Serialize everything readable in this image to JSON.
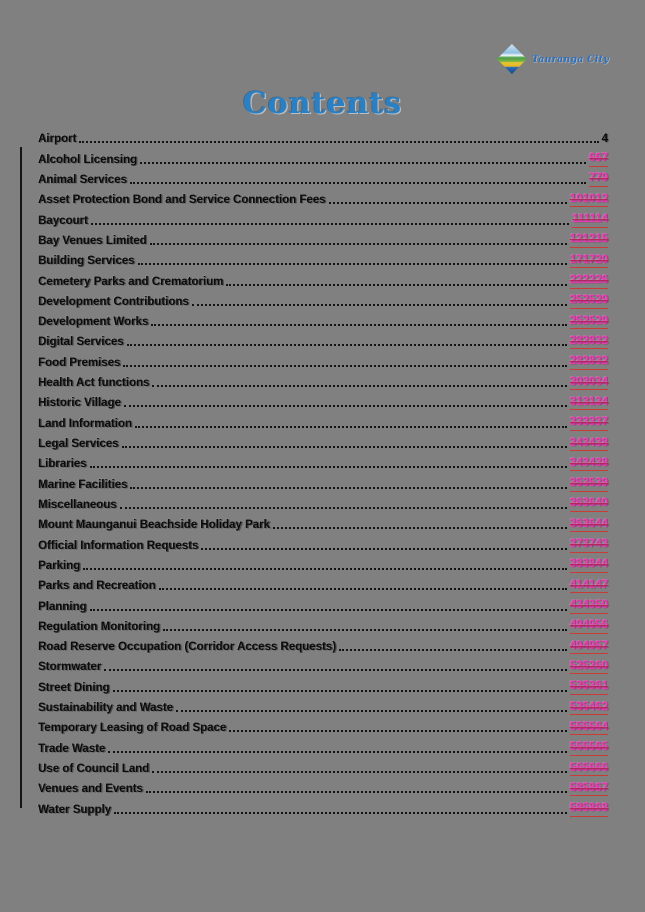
{
  "logo": {
    "brand": "Tauranga City",
    "icon": "tauranga-city-diamond-logo"
  },
  "title": "Contents",
  "colors": {
    "page_background": "#808080",
    "title_blue": "#2a80c4",
    "changed_page_pink": "#e63cb2",
    "strike_underline_red": "#cb3b35",
    "body_text": "#0b0b0b"
  },
  "toc": {
    "entries": [
      {
        "label": "Airport",
        "page": "4",
        "changed": false
      },
      {
        "label": "Alcohol Licensing",
        "page": "667",
        "changed": true
      },
      {
        "label": "Animal Services",
        "page": "779",
        "changed": true
      },
      {
        "label": "Asset Protection Bond and Service Connection Fees",
        "page": "101012",
        "changed": true
      },
      {
        "label": "Baycourt",
        "page": "111114",
        "changed": true
      },
      {
        "label": "Bay Venues Limited",
        "page": "121215",
        "changed": true
      },
      {
        "label": "Building Services",
        "page": "171720",
        "changed": true
      },
      {
        "label": "Cemetery Parks and Crematorium",
        "page": "222226",
        "changed": true
      },
      {
        "label": "Development Contributions",
        "page": "252529",
        "changed": true
      },
      {
        "label": "Development Works",
        "page": "252529",
        "changed": true
      },
      {
        "label": "Digital Services",
        "page": "282832",
        "changed": true
      },
      {
        "label": "Food Premises",
        "page": "282832",
        "changed": true
      },
      {
        "label": "Health Act functions",
        "page": "303034",
        "changed": true
      },
      {
        "label": "Historic Village",
        "page": "313134",
        "changed": true
      },
      {
        "label": "Land Information",
        "page": "333337",
        "changed": true
      },
      {
        "label": "Legal Services",
        "page": "343438",
        "changed": true
      },
      {
        "label": "Libraries",
        "page": "343438",
        "changed": true
      },
      {
        "label": "Marine Facilities",
        "page": "353539",
        "changed": true
      },
      {
        "label": "Miscellaneous",
        "page": "363640",
        "changed": true
      },
      {
        "label": "Mount Maunganui Beachside Holiday Park",
        "page": "363644",
        "changed": true
      },
      {
        "label": "Official Information Requests",
        "page": "373743",
        "changed": true
      },
      {
        "label": "Parking",
        "page": "383844",
        "changed": true
      },
      {
        "label": "Parks and Recreation",
        "page": "414147",
        "changed": true
      },
      {
        "label": "Planning",
        "page": "434350",
        "changed": true
      },
      {
        "label": "Regulation Monitoring",
        "page": "494956",
        "changed": true
      },
      {
        "label": "Road Reserve Occupation (Corridor Access Requests)",
        "page": "494957",
        "changed": true
      },
      {
        "label": "Stormwater",
        "page": "525260",
        "changed": true
      },
      {
        "label": "Street Dining",
        "page": "535361",
        "changed": true
      },
      {
        "label": "Sustainability and Waste",
        "page": "535462",
        "changed": true
      },
      {
        "label": "Temporary Leasing of Road Space",
        "page": "555564",
        "changed": true
      },
      {
        "label": "Trade Waste",
        "page": "555565",
        "changed": true
      },
      {
        "label": "Use of Council Land",
        "page": "565666",
        "changed": true
      },
      {
        "label": "Venues and Events",
        "page": "585867",
        "changed": true
      },
      {
        "label": "Water Supply",
        "page": "585868",
        "changed": true
      }
    ]
  }
}
